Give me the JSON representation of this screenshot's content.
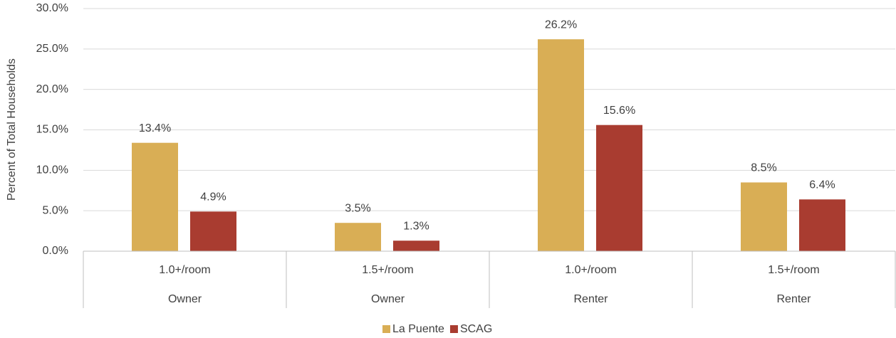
{
  "chart_data": {
    "type": "bar",
    "y_axis_label": "Percent of Total Households",
    "categories": [
      "1.0+/room",
      "1.5+/room",
      "1.0+/room",
      "1.5+/room"
    ],
    "groups": [
      "Owner",
      "Owner",
      "Renter",
      "Renter"
    ],
    "series": [
      {
        "name": "La Puente",
        "color": "#d9ae55",
        "values": [
          13.4,
          3.5,
          26.2,
          8.5
        ],
        "value_labels": [
          "13.4%",
          "3.5%",
          "26.2%",
          "8.5%"
        ]
      },
      {
        "name": "SCAG",
        "color": "#a93c30",
        "values": [
          4.9,
          1.3,
          15.6,
          6.4
        ],
        "value_labels": [
          "4.9%",
          "1.3%",
          "15.6%",
          "6.4%"
        ]
      }
    ],
    "ylim": [
      0,
      30
    ],
    "yticks": [
      {
        "value": 0,
        "label": "0.0%"
      },
      {
        "value": 5,
        "label": "5.0%"
      },
      {
        "value": 10,
        "label": "10.0%"
      },
      {
        "value": 15,
        "label": "15.0%"
      },
      {
        "value": 20,
        "label": "20.0%"
      },
      {
        "value": 25,
        "label": "25.0%"
      },
      {
        "value": 30,
        "label": "30.0%"
      }
    ],
    "grid": true,
    "legend": "bottom"
  }
}
